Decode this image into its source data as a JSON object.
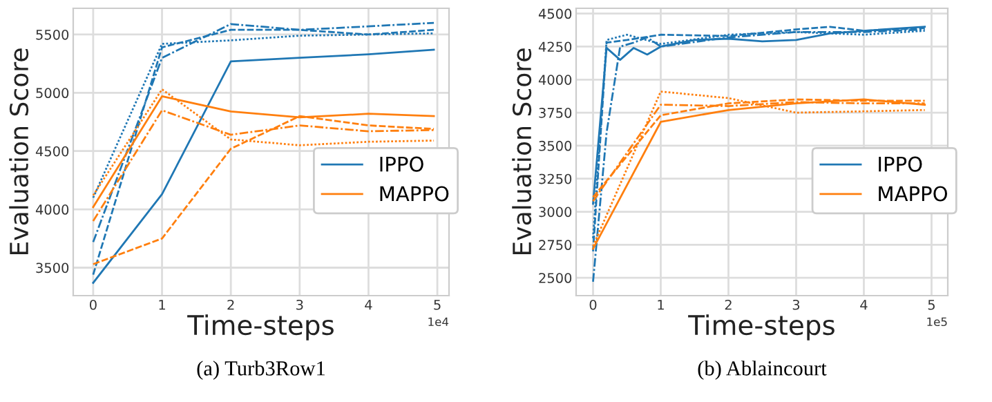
{
  "chart_data": [
    {
      "type": "line",
      "xlabel": "Time-steps",
      "ylabel": "Evaluation Score",
      "annotations": [
        "1e4",
        "(a) Turb3Row1"
      ],
      "xlim": [
        -0.29,
        5.17
      ],
      "ylim": [
        3260,
        5725
      ],
      "xticks": [
        0,
        1,
        2,
        3,
        4,
        5
      ],
      "yticks": [
        3500,
        4000,
        4500,
        5000,
        5500
      ],
      "grid": true,
      "legend": "right",
      "marker": "none",
      "series": [
        {
          "name": "IPPO",
          "color": "#1f77b4",
          "line_style": "solid",
          "x": [
            0,
            1,
            2,
            3,
            4,
            4.95
          ],
          "values": [
            3370,
            4130,
            5270,
            5300,
            5330,
            5370
          ]
        },
        {
          "color": "#1f77b4",
          "line_style": "dashed",
          "x": [
            0,
            1,
            2,
            3,
            4,
            4.95
          ],
          "values": [
            3440,
            5390,
            5540,
            5540,
            5500,
            5540
          ]
        },
        {
          "color": "#1f77b4",
          "line_style": "dashdot",
          "x": [
            0,
            1,
            2,
            3,
            4,
            4.95
          ],
          "values": [
            3720,
            5300,
            5590,
            5540,
            5570,
            5600
          ]
        },
        {
          "color": "#1f77b4",
          "line_style": "dotted",
          "x": [
            0,
            1,
            2,
            3,
            4,
            4.95
          ],
          "values": [
            4100,
            5420,
            5450,
            5490,
            5500,
            5510
          ]
        },
        {
          "name": "MAPPO",
          "color": "#ff7f0e",
          "line_style": "solid",
          "x": [
            0,
            1,
            2,
            3,
            4,
            4.95
          ],
          "values": [
            4020,
            4970,
            4840,
            4790,
            4820,
            4800
          ]
        },
        {
          "color": "#ff7f0e",
          "line_style": "dashed",
          "x": [
            0,
            1,
            2,
            3,
            4,
            4.95
          ],
          "values": [
            3530,
            3750,
            4520,
            4800,
            4720,
            4690
          ]
        },
        {
          "color": "#ff7f0e",
          "line_style": "dashdot",
          "x": [
            0,
            1,
            2,
            3,
            4,
            4.95
          ],
          "values": [
            3900,
            4850,
            4640,
            4720,
            4670,
            4680
          ]
        },
        {
          "color": "#ff7f0e",
          "line_style": "dotted",
          "x": [
            0,
            1,
            2,
            3,
            4,
            4.95
          ],
          "values": [
            4120,
            5030,
            4600,
            4550,
            4580,
            4590
          ]
        }
      ]
    },
    {
      "type": "line",
      "xlabel": "Time-steps",
      "ylabel": "Evaluation Score",
      "annotations": [
        "1e5",
        "(b) Ablaincourt"
      ],
      "xlim": [
        -0.25,
        5.24
      ],
      "ylim": [
        2365,
        4540
      ],
      "xticks": [
        0,
        1,
        2,
        3,
        4,
        5
      ],
      "yticks": [
        2500,
        2750,
        3000,
        3250,
        3500,
        3750,
        4000,
        4250,
        4500
      ],
      "grid": true,
      "legend": "right",
      "marker": "none",
      "series": [
        {
          "name": "IPPO",
          "color": "#1f77b4",
          "line_style": "solid",
          "x": [
            0,
            0.2,
            0.4,
            0.6,
            0.8,
            1,
            1.5,
            2,
            2.5,
            3,
            3.5,
            4,
            4.9
          ],
          "values": [
            3060,
            4240,
            4150,
            4240,
            4190,
            4250,
            4300,
            4310,
            4290,
            4300,
            4350,
            4370,
            4400
          ]
        },
        {
          "color": "#1f77b4",
          "line_style": "dashed",
          "x": [
            0,
            0.2,
            0.5,
            1,
            2,
            3,
            3.5,
            4,
            4.9
          ],
          "values": [
            2700,
            4280,
            4300,
            4340,
            4330,
            4380,
            4400,
            4370,
            4390
          ]
        },
        {
          "color": "#1f77b4",
          "line_style": "dashdot",
          "x": [
            0,
            0.2,
            0.4,
            0.6,
            0.8,
            1,
            2,
            3,
            4,
            4.9
          ],
          "values": [
            2470,
            3600,
            4250,
            4280,
            4320,
            4250,
            4320,
            4360,
            4360,
            4380
          ]
        },
        {
          "color": "#1f77b4",
          "line_style": "dotted",
          "x": [
            0,
            0.2,
            0.5,
            1,
            2,
            3,
            4,
            4.9
          ],
          "values": [
            2800,
            4300,
            4340,
            4270,
            4340,
            4360,
            4340,
            4370
          ]
        },
        {
          "name": "MAPPO",
          "color": "#ff7f0e",
          "line_style": "solid",
          "x": [
            0,
            1,
            2,
            3,
            4,
            4.9
          ],
          "values": [
            2720,
            3680,
            3770,
            3820,
            3850,
            3810
          ]
        },
        {
          "color": "#ff7f0e",
          "line_style": "dashed",
          "x": [
            0,
            1,
            2,
            3,
            4,
            4.9
          ],
          "values": [
            3110,
            3730,
            3820,
            3850,
            3840,
            3840
          ]
        },
        {
          "color": "#ff7f0e",
          "line_style": "dashdot",
          "x": [
            0,
            1,
            2,
            3,
            4,
            4.9
          ],
          "values": [
            3080,
            3810,
            3800,
            3830,
            3820,
            3820
          ]
        },
        {
          "color": "#ff7f0e",
          "line_style": "dotted",
          "x": [
            0,
            1,
            2,
            3,
            4,
            4.9
          ],
          "values": [
            2740,
            3910,
            3860,
            3750,
            3760,
            3770
          ]
        }
      ]
    }
  ]
}
